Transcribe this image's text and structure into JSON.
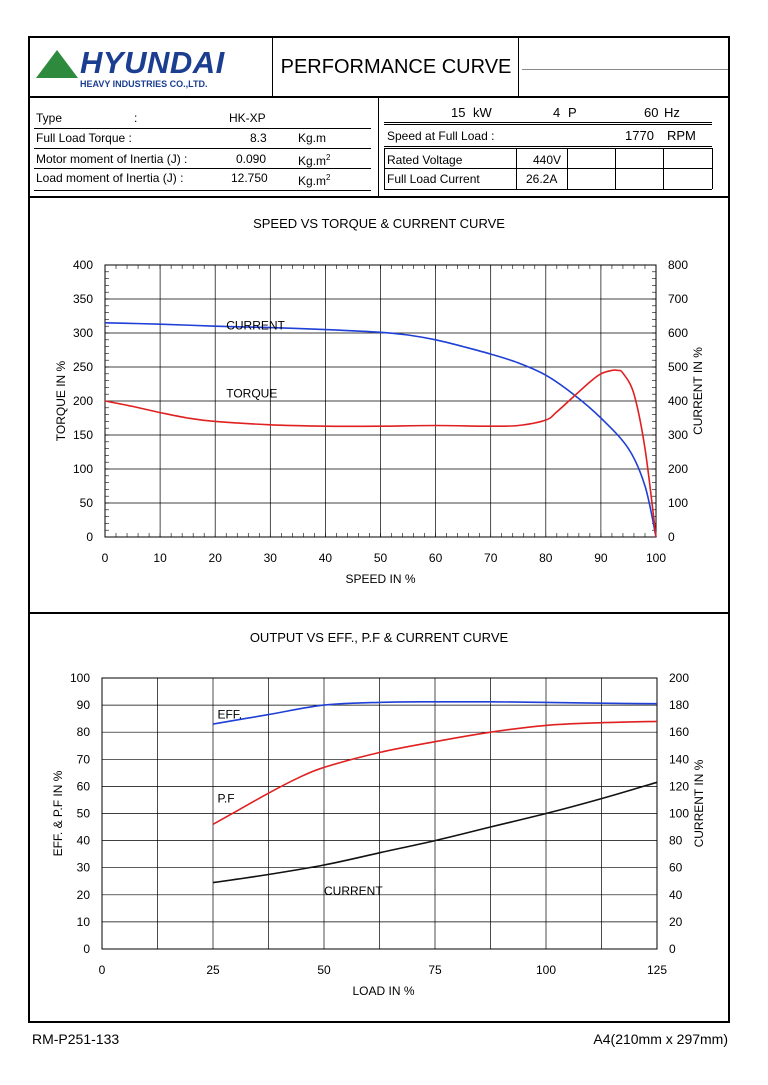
{
  "header": {
    "brand": "HYUNDAI",
    "brand_sub": "HEAVY INDUSTRIES CO.,LTD.",
    "title": "PERFORMANCE CURVE"
  },
  "specs": {
    "type_label": "Type",
    "type_colon": ":",
    "type_value": "HK-XP",
    "torque_label": "Full Load Torque :",
    "torque_value": "8.3",
    "torque_unit": "Kg.m",
    "motor_inertia_label": "Motor moment of Inertia (J) :",
    "motor_inertia_value": "0.090",
    "motor_inertia_unit": "Kg.m",
    "motor_inertia_sup": "2",
    "load_inertia_label": "Load moment of Inertia (J) :",
    "load_inertia_value": "12.750",
    "load_inertia_unit": "Kg.m",
    "load_inertia_sup": "2",
    "power_value": "15",
    "power_unit": "kW",
    "poles_value": "4",
    "poles_unit": "P",
    "freq_value": "60",
    "freq_unit": "Hz",
    "speed_label": "Speed at Full Load :",
    "speed_value": "1770",
    "speed_unit": "RPM",
    "voltage_label": "Rated Voltage",
    "voltage_value": "440V",
    "current_label": "Full Load Current",
    "current_value": "26.2A"
  },
  "chart_data": [
    {
      "type": "line",
      "title": "SPEED VS TORQUE & CURRENT CURVE",
      "xlabel": "SPEED IN %",
      "ylabel_left": "TORQUE IN %",
      "ylabel_right": "CURRENT IN %",
      "xlim": [
        0,
        100
      ],
      "ylim_left": [
        0,
        400
      ],
      "ylim_right": [
        0,
        800
      ],
      "xticks": [
        0,
        10,
        20,
        30,
        40,
        50,
        60,
        70,
        80,
        90,
        100
      ],
      "yticks_left": [
        0,
        50,
        100,
        150,
        200,
        250,
        300,
        350,
        400
      ],
      "yticks_right": [
        0,
        100,
        200,
        300,
        400,
        500,
        600,
        700,
        800
      ],
      "grid": true,
      "series": [
        {
          "name": "CURRENT",
          "axis": "right",
          "color": "#1f3fd6",
          "x": [
            0,
            10,
            20,
            30,
            40,
            50,
            55,
            60,
            65,
            70,
            75,
            80,
            85,
            90,
            95,
            98,
            100
          ],
          "y": [
            630,
            626,
            620,
            616,
            610,
            602,
            594,
            580,
            560,
            538,
            512,
            476,
            420,
            350,
            260,
            150,
            0
          ]
        },
        {
          "name": "TORQUE",
          "axis": "left",
          "color": "#e02020",
          "x": [
            0,
            5,
            10,
            15,
            20,
            30,
            40,
            50,
            60,
            70,
            75,
            80,
            82,
            85,
            88,
            90,
            92,
            93,
            94,
            96,
            98,
            100
          ],
          "y": [
            200,
            192,
            183,
            175,
            170,
            165,
            163,
            163,
            164,
            163,
            164,
            172,
            184,
            206,
            228,
            240,
            245,
            245,
            241,
            210,
            130,
            0
          ]
        }
      ]
    },
    {
      "type": "line",
      "title": "OUTPUT VS EFF., P.F & CURRENT CURVE",
      "xlabel": "LOAD IN %",
      "ylabel_left": "EFF. & P.F IN %",
      "ylabel_right": "CURRENT IN %",
      "xlim": [
        0,
        125
      ],
      "ylim_left": [
        0,
        100
      ],
      "ylim_right": [
        0,
        200
      ],
      "xticks": [
        0,
        25,
        50,
        75,
        100,
        125
      ],
      "yticks_left": [
        0,
        10,
        20,
        30,
        40,
        50,
        60,
        70,
        80,
        90,
        100
      ],
      "yticks_right": [
        0,
        20,
        40,
        60,
        80,
        100,
        120,
        140,
        160,
        180,
        200
      ],
      "grid": true,
      "series": [
        {
          "name": "EFF.",
          "axis": "left",
          "color": "#1f3fd6",
          "x": [
            25,
            37.5,
            50,
            62.5,
            75,
            87.5,
            100,
            112.5,
            125
          ],
          "y": [
            83,
            86.5,
            90,
            91,
            91.2,
            91.2,
            91,
            90.7,
            90.5
          ]
        },
        {
          "name": "P.F",
          "axis": "left",
          "color": "#e02020",
          "x": [
            25,
            31,
            37.5,
            44,
            50,
            62.5,
            75,
            87.5,
            100,
            112.5,
            125
          ],
          "y": [
            46,
            51.5,
            57.5,
            63,
            67,
            72.5,
            76.5,
            80,
            82.5,
            83.5,
            84
          ]
        },
        {
          "name": "CURRENT",
          "axis": "right",
          "color": "#111111",
          "x": [
            25,
            37.5,
            50,
            62.5,
            75,
            87.5,
            100,
            112.5,
            125
          ],
          "y": [
            49,
            55,
            62,
            71,
            80,
            90,
            100,
            111,
            123
          ]
        }
      ]
    }
  ],
  "footer": {
    "left": "RM-P251-133",
    "right": "A4(210mm x 297mm)"
  }
}
